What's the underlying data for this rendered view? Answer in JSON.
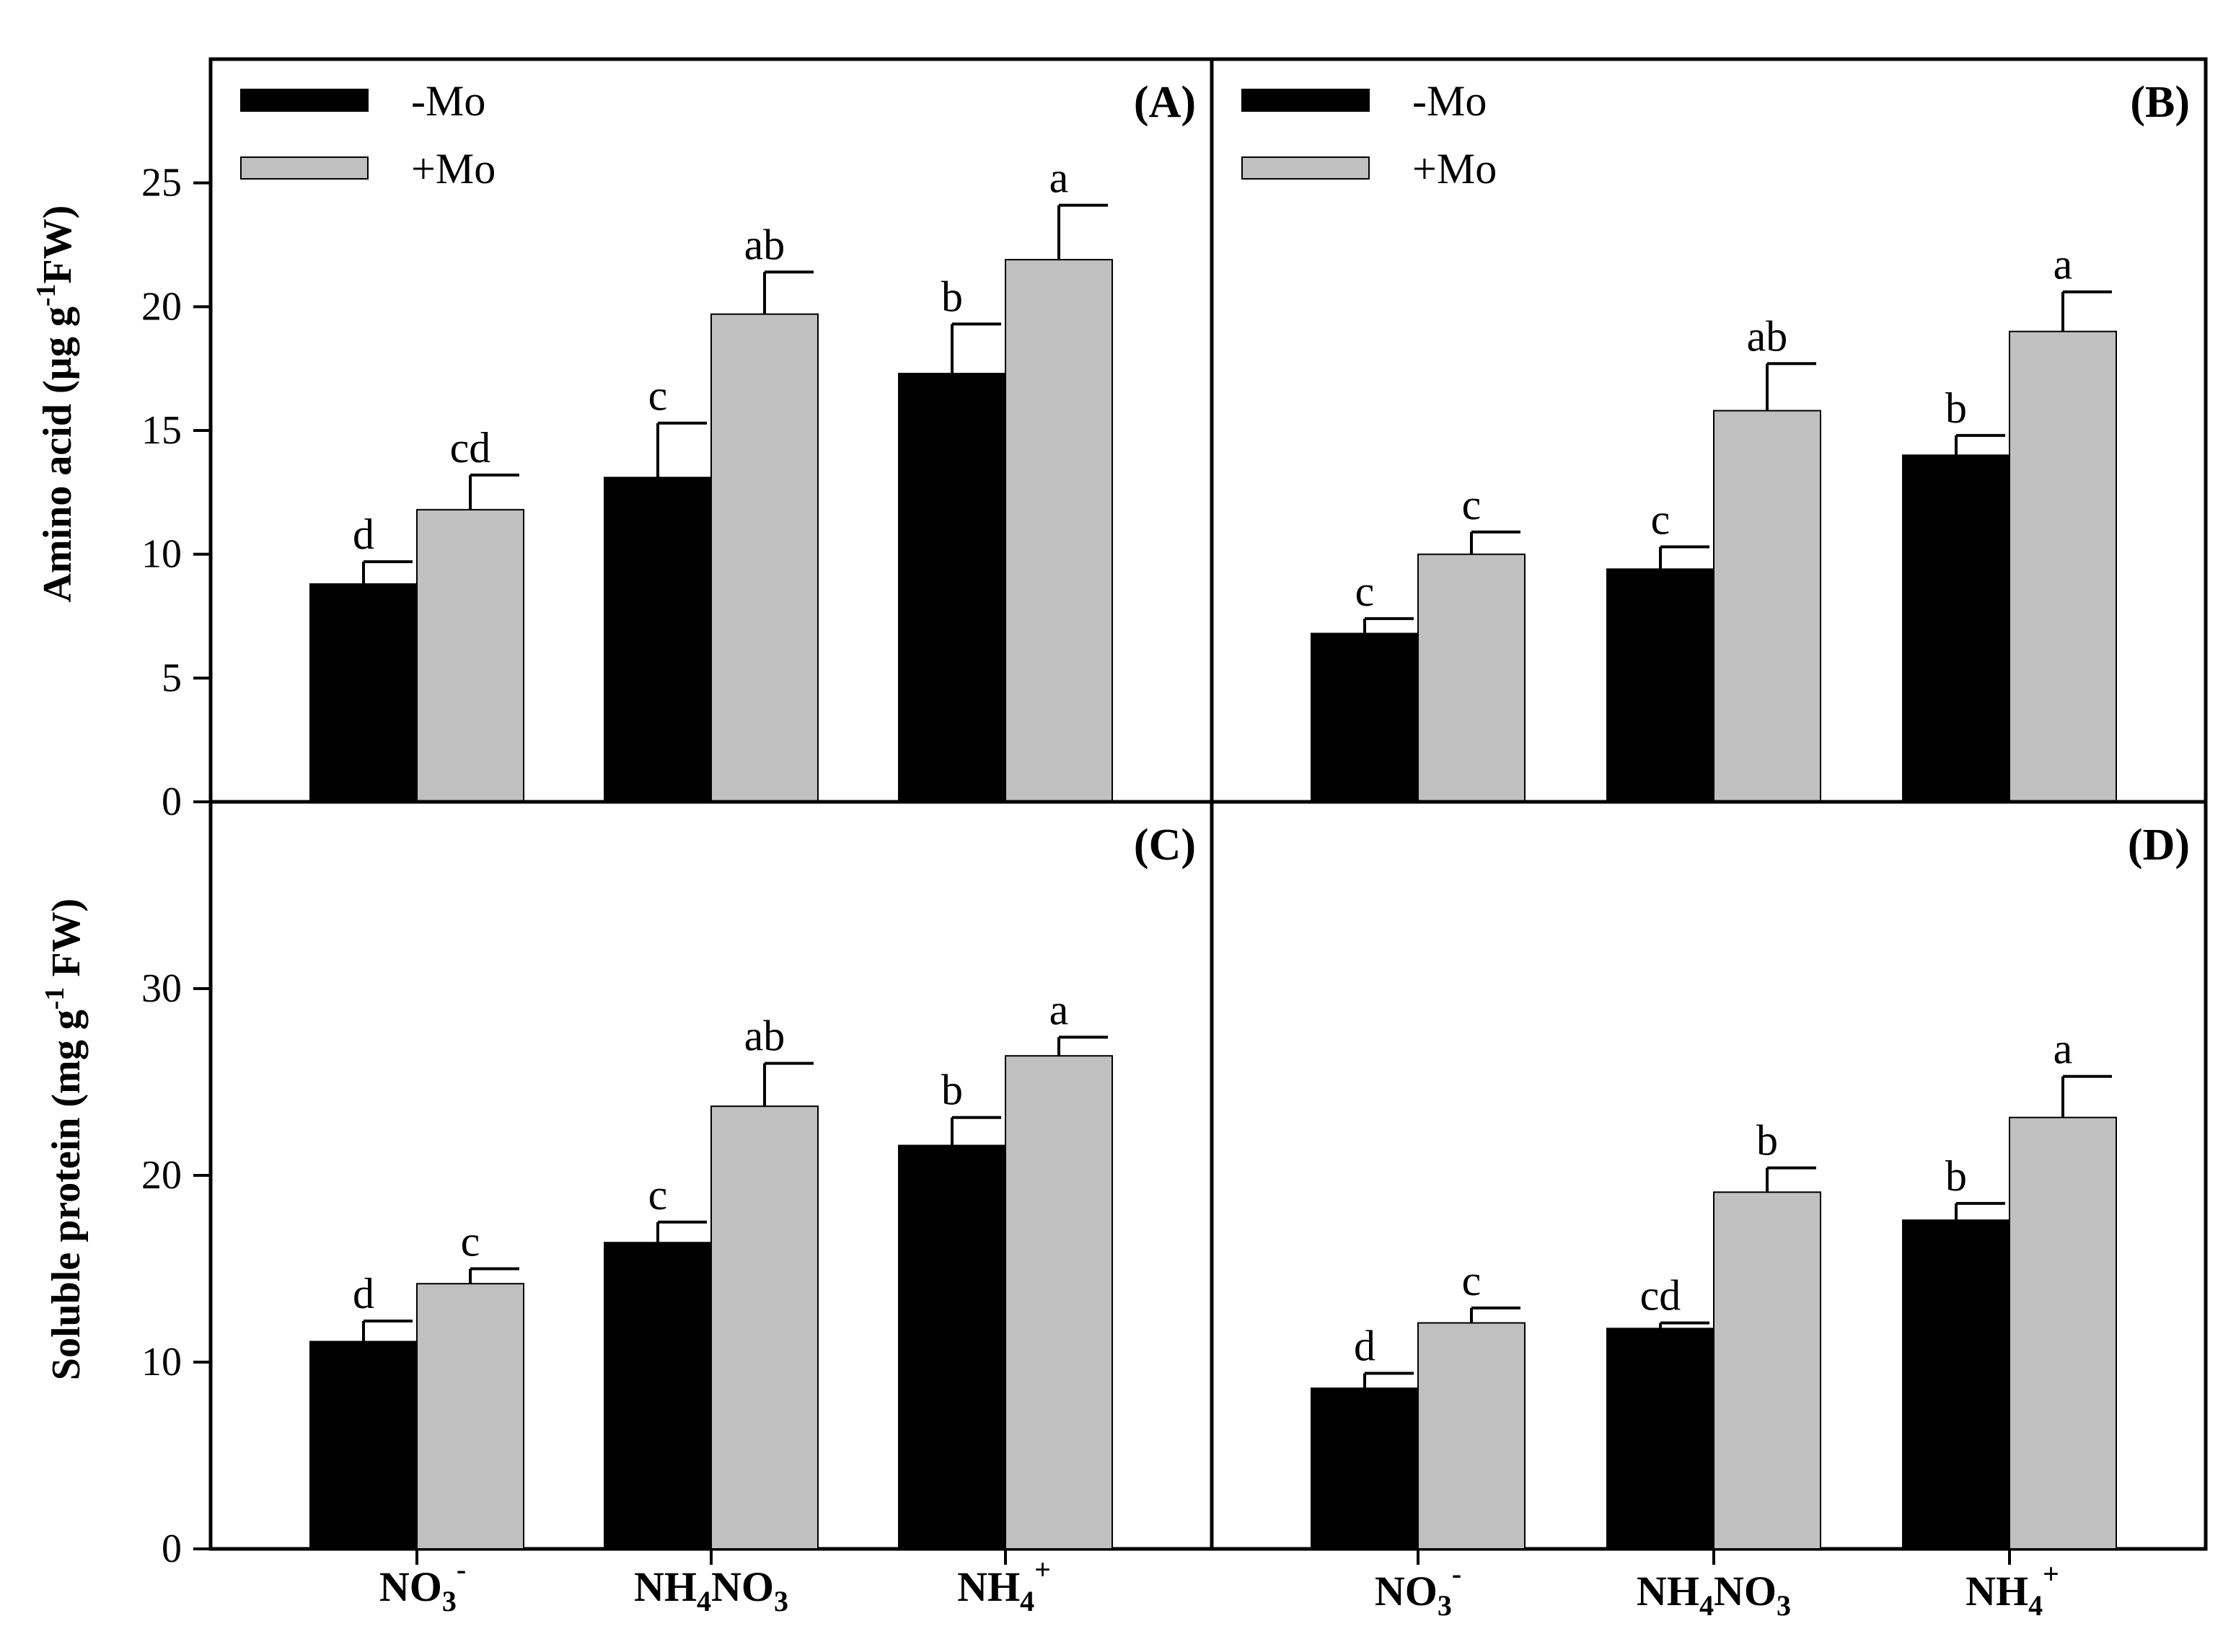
{
  "legend": {
    "minus": "-Mo",
    "plus": "+Mo"
  },
  "colors": {
    "minus": "#000000",
    "plus": "#c0c0c0",
    "axis": "#000000"
  },
  "y_titles": {
    "amino": {
      "main": "Amino acid (µg g",
      "sup": "-1",
      "tail": "FW)"
    },
    "protein": {
      "main": "Soluble protein (mg g",
      "sup": "-1",
      "tail": " FW)"
    }
  },
  "categories": [
    {
      "id": "NO3",
      "base": "NO",
      "sub": "3",
      "sup": "-",
      "tail": ""
    },
    {
      "id": "NH4NO3",
      "base": "NH",
      "sub": "4",
      "sup": "",
      "tail": "NO",
      "sub2": "3"
    },
    {
      "id": "NH4",
      "base": "NH",
      "sub": "4",
      "sup": "+",
      "tail": ""
    }
  ],
  "chart_data": [
    {
      "type": "bar",
      "panel": "(A)",
      "ylabel": "Amino acid (µg g-1 FW)",
      "ylim": [
        0,
        30
      ],
      "yticks": [
        0,
        5,
        10,
        15,
        20,
        25
      ],
      "categories": [
        "NO3-",
        "NH4NO3",
        "NH4+"
      ],
      "series": [
        {
          "name": "-Mo",
          "values": [
            8.8,
            13.1,
            17.3
          ],
          "errors": [
            0.9,
            2.2,
            2.0
          ],
          "letters": [
            "d",
            "c",
            "b"
          ]
        },
        {
          "name": "+Mo",
          "values": [
            11.8,
            19.7,
            21.9
          ],
          "errors": [
            1.4,
            1.7,
            2.2
          ],
          "letters": [
            "cd",
            "ab",
            "a"
          ]
        }
      ]
    },
    {
      "type": "bar",
      "panel": "(B)",
      "ylabel": "Amino acid (µg g-1 FW)",
      "ylim": [
        0,
        30
      ],
      "yticks": [],
      "categories": [
        "NO3-",
        "NH4NO3",
        "NH4+"
      ],
      "series": [
        {
          "name": "-Mo",
          "values": [
            6.8,
            9.4,
            14.0
          ],
          "errors": [
            0.6,
            0.9,
            0.8
          ],
          "letters": [
            "c",
            "c",
            "b"
          ]
        },
        {
          "name": "+Mo",
          "values": [
            10.0,
            15.8,
            19.0
          ],
          "errors": [
            0.9,
            1.9,
            1.6
          ],
          "letters": [
            "c",
            "ab",
            "a"
          ]
        }
      ]
    },
    {
      "type": "bar",
      "panel": "(C)",
      "ylabel": "Soluble protein (mg g-1 FW)",
      "ylim": [
        0,
        40
      ],
      "yticks": [
        0,
        10,
        20,
        30
      ],
      "categories": [
        "NO3-",
        "NH4NO3",
        "NH4+"
      ],
      "series": [
        {
          "name": "-Mo",
          "values": [
            11.1,
            16.4,
            21.6
          ],
          "errors": [
            1.1,
            1.1,
            1.5
          ],
          "letters": [
            "d",
            "c",
            "b"
          ]
        },
        {
          "name": "+Mo",
          "values": [
            14.2,
            23.7,
            26.4
          ],
          "errors": [
            0.8,
            2.3,
            1.0
          ],
          "letters": [
            "c",
            "ab",
            "a"
          ]
        }
      ]
    },
    {
      "type": "bar",
      "panel": "(D)",
      "ylabel": "Soluble protein (mg g-1 FW)",
      "ylim": [
        0,
        40
      ],
      "yticks": [],
      "categories": [
        "NO3-",
        "NH4NO3",
        "NH4+"
      ],
      "series": [
        {
          "name": "-Mo",
          "values": [
            8.6,
            11.8,
            17.6
          ],
          "errors": [
            0.8,
            0.3,
            0.9
          ],
          "letters": [
            "d",
            "cd",
            "b"
          ]
        },
        {
          "name": "+Mo",
          "values": [
            12.1,
            19.1,
            23.1
          ],
          "errors": [
            0.8,
            1.3,
            2.2
          ],
          "letters": [
            "c",
            "b",
            "a"
          ]
        }
      ]
    }
  ]
}
